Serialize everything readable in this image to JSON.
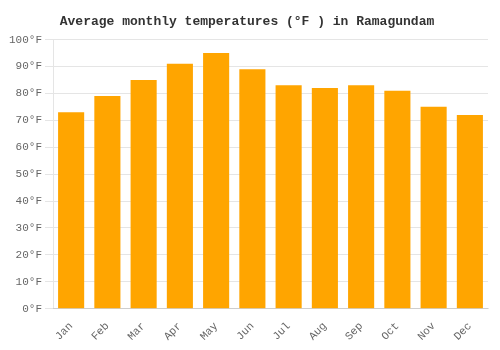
{
  "chart_data": {
    "type": "bar",
    "title": "Average monthly temperatures (°F ) in Ramagundam",
    "categories": [
      "Jan",
      "Feb",
      "Mar",
      "Apr",
      "May",
      "Jun",
      "Jul",
      "Aug",
      "Sep",
      "Oct",
      "Nov",
      "Dec"
    ],
    "values": [
      73,
      79,
      85,
      91,
      95,
      89,
      83,
      82,
      83,
      81,
      75,
      72
    ],
    "color": "#FFA500",
    "ylim": [
      0,
      100
    ],
    "yticks": [
      {
        "value": 0,
        "label": "0°F"
      },
      {
        "value": 10,
        "label": "10°F"
      },
      {
        "value": 20,
        "label": "20°F"
      },
      {
        "value": 30,
        "label": "30°F"
      },
      {
        "value": 40,
        "label": "40°F"
      },
      {
        "value": 50,
        "label": "50°F"
      },
      {
        "value": 60,
        "label": "60°F"
      },
      {
        "value": 70,
        "label": "70°F"
      },
      {
        "value": 80,
        "label": "80°F"
      },
      {
        "value": 90,
        "label": "90°F"
      },
      {
        "value": 100,
        "label": "100°F"
      }
    ],
    "grid": true
  }
}
